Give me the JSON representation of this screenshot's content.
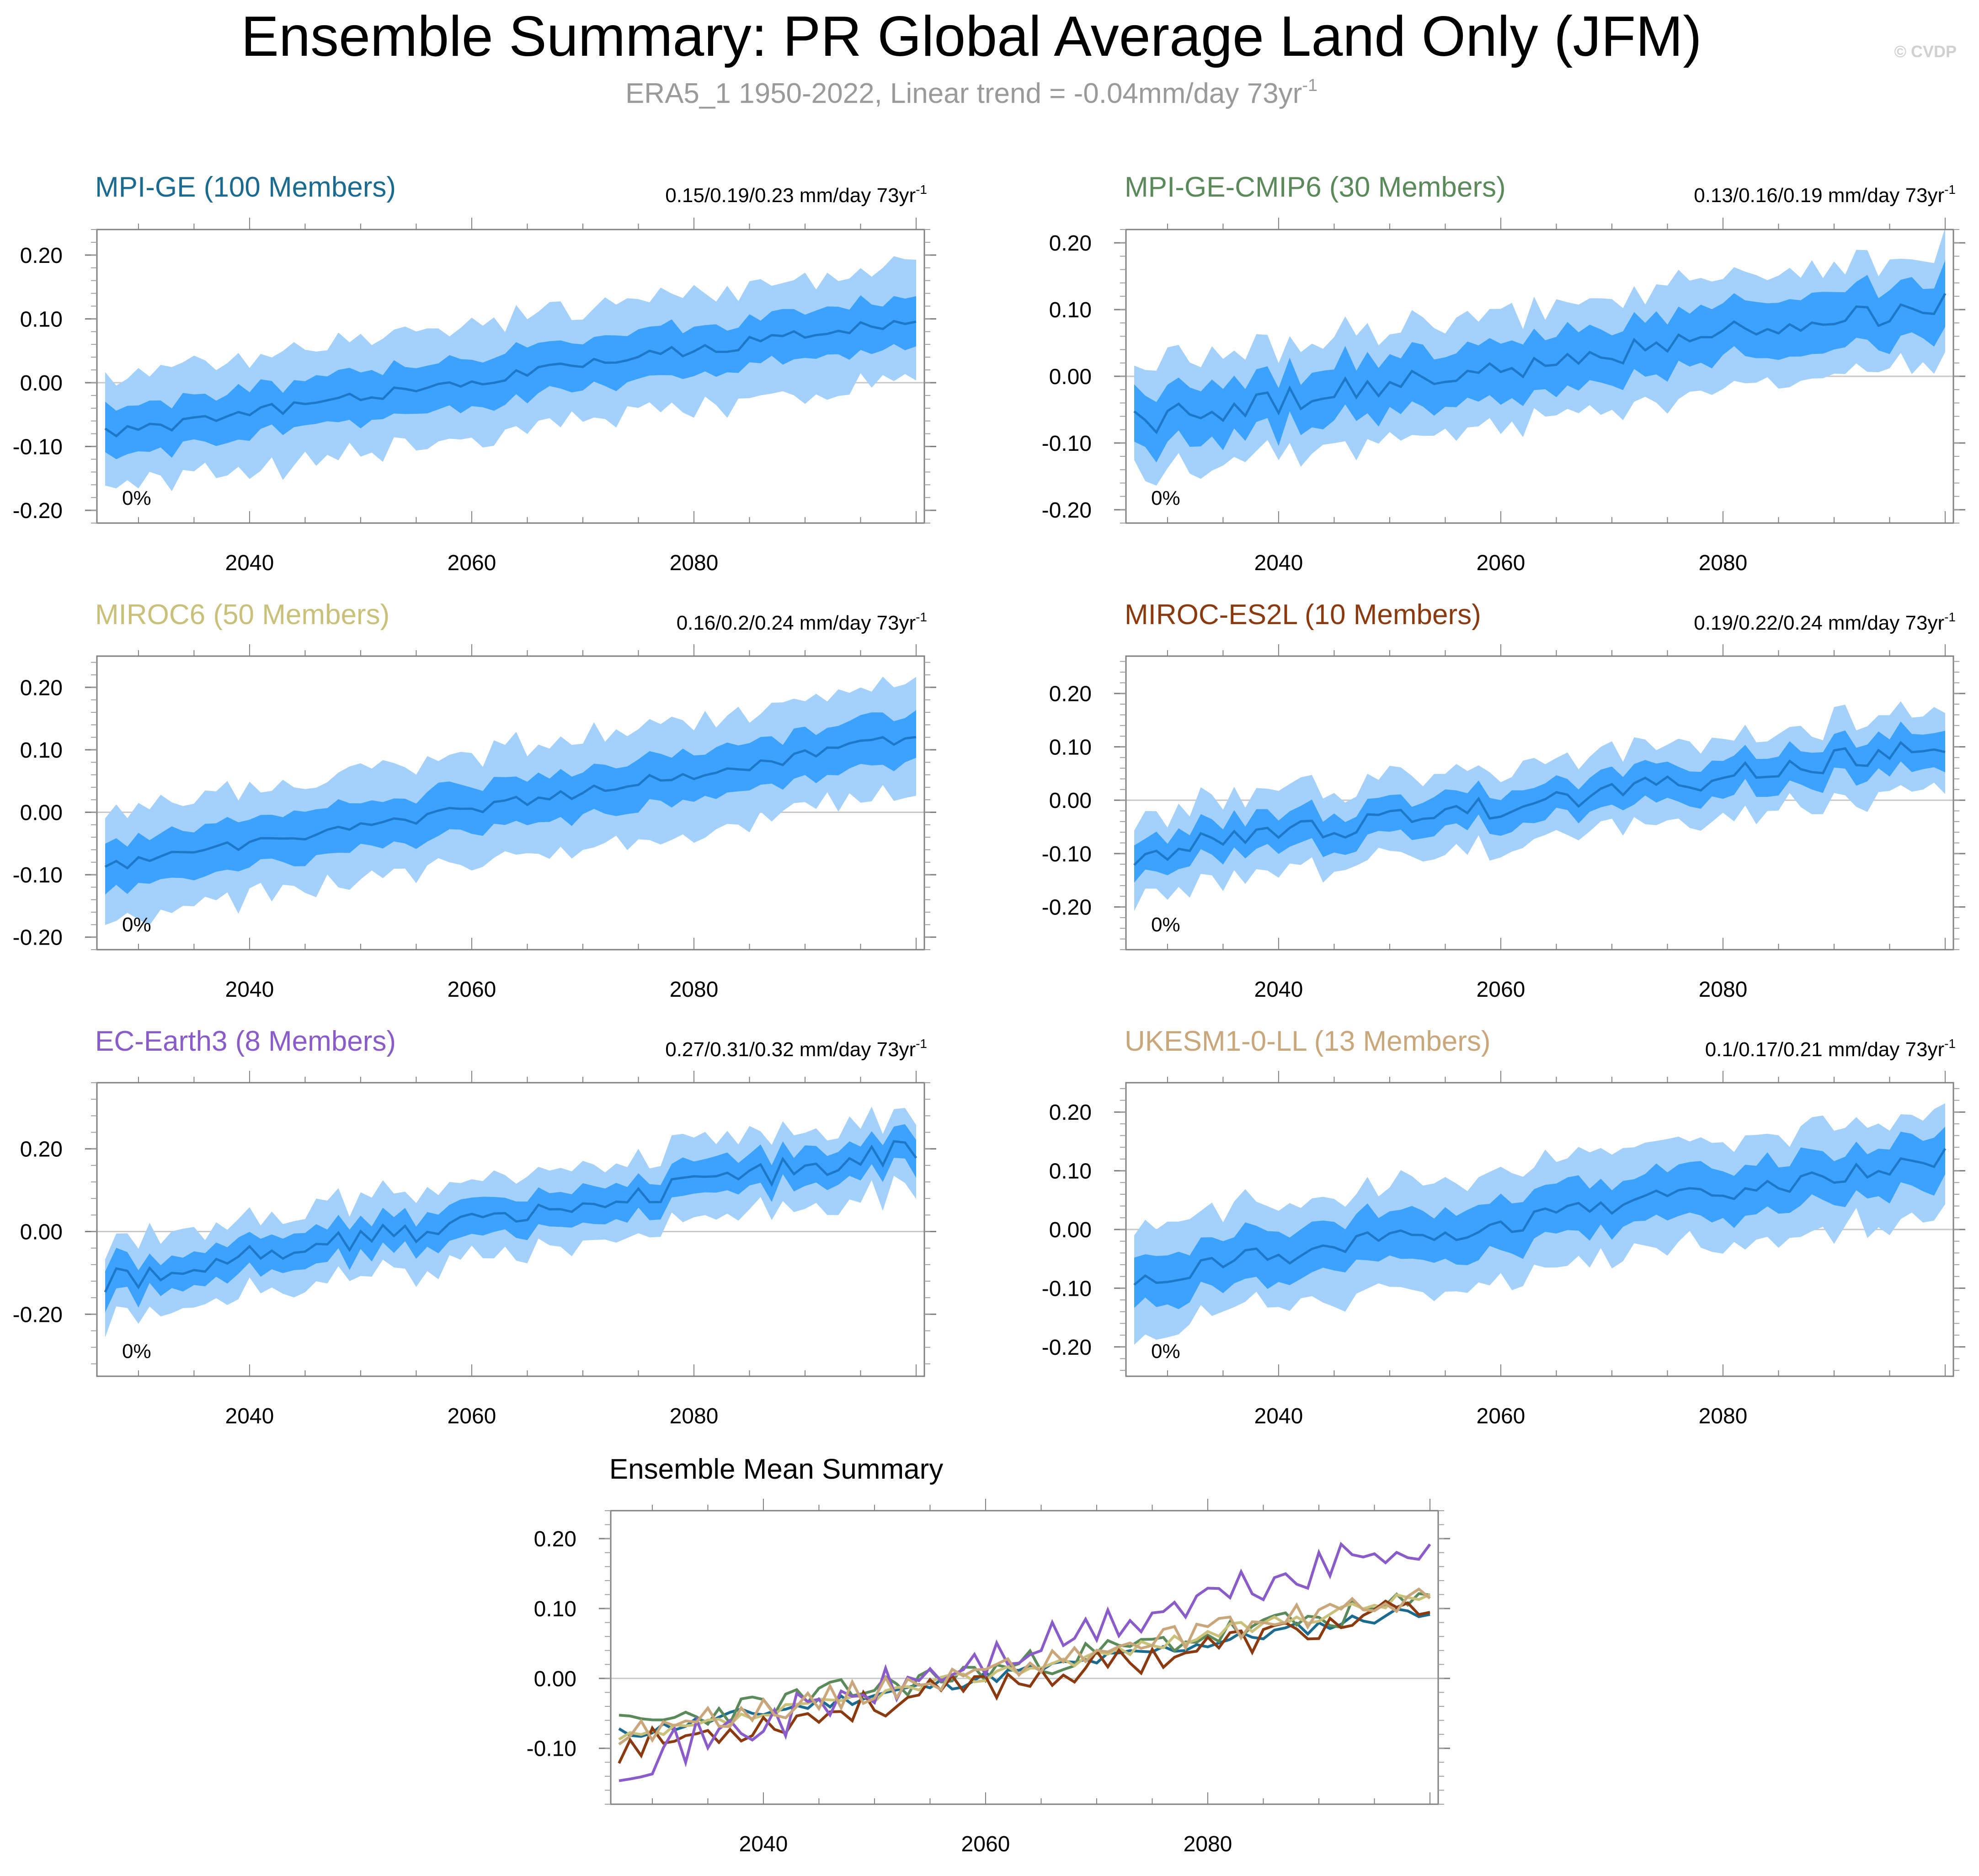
{
  "title": "Ensemble Summary: PR Global Average Land Only (JFM)",
  "subtitle": "ERA5_1 1950-2022, Linear trend = -0.04mm/day 73yr",
  "subtitle_sup": "-1",
  "credit": "© CVDP",
  "colors": {
    "outer_band": "#a3d1fb",
    "inner_band": "#3ba2ff",
    "mean_line": "#1e78c8",
    "zero_line": "#c8c8c8"
  },
  "chart_data": [
    {
      "type": "area",
      "title": "MPI-GE (100 Members)",
      "title_color": "#1a6b8f",
      "trend_text": "0.15/0.19/0.23 mm/day 73yr",
      "trend_sup": "-1",
      "percent_label": "0%",
      "x_range": [
        2027,
        2100
      ],
      "x_ticks": [
        "2040",
        "2060",
        "2080"
      ],
      "x_tick_values": [
        2040,
        2060,
        2080
      ],
      "ylim": [
        -0.22,
        0.24
      ],
      "y_ticks": [
        "0.20",
        "0.10",
        "0.00",
        "-0.10",
        "-0.20"
      ],
      "y_tick_values": [
        0.2,
        0.1,
        0.0,
        -0.1,
        -0.2
      ],
      "series": [
        {
          "name": "ensemble mean",
          "start_mean": -0.08,
          "end_mean": 0.1,
          "noise": 0.01,
          "inner_spread": 0.045,
          "outer_spread": 0.095,
          "seed": 11
        }
      ]
    },
    {
      "type": "area",
      "title": "MPI-GE-CMIP6 (30 Members)",
      "title_color": "#5a8a5a",
      "trend_text": "0.13/0.16/0.19 mm/day 73yr",
      "trend_sup": "-1",
      "percent_label": "0%",
      "x_range": [
        2027,
        2100
      ],
      "x_ticks": [
        "2040",
        "2060",
        "2080"
      ],
      "x_tick_values": [
        2040,
        2060,
        2080
      ],
      "ylim": [
        -0.22,
        0.22
      ],
      "y_ticks": [
        "0.20",
        "0.10",
        "0.00",
        "-0.10",
        "-0.20"
      ],
      "y_tick_values": [
        0.2,
        0.1,
        0.0,
        -0.1,
        -0.2
      ],
      "series": [
        {
          "name": "ensemble mean",
          "start_mean": -0.07,
          "end_mean": 0.11,
          "noise": 0.02,
          "inner_spread": 0.05,
          "outer_spread": 0.09,
          "seed": 23
        }
      ]
    },
    {
      "type": "area",
      "title": "MIROC6 (50 Members)",
      "title_color": "#c9c07a",
      "trend_text": "0.16/0.2/0.24 mm/day 73yr",
      "trend_sup": "-1",
      "percent_label": "0%",
      "x_range": [
        2027,
        2100
      ],
      "x_ticks": [
        "2040",
        "2060",
        "2080"
      ],
      "x_tick_values": [
        2040,
        2060,
        2080
      ],
      "ylim": [
        -0.22,
        0.25
      ],
      "y_ticks": [
        "0.20",
        "0.10",
        "0.00",
        "-0.10",
        "-0.20"
      ],
      "y_tick_values": [
        0.2,
        0.1,
        0.0,
        -0.1,
        -0.2
      ],
      "series": [
        {
          "name": "ensemble mean",
          "start_mean": -0.09,
          "end_mean": 0.12,
          "noise": 0.01,
          "inner_spread": 0.045,
          "outer_spread": 0.095,
          "seed": 37
        }
      ]
    },
    {
      "type": "area",
      "title": "MIROC-ES2L (10 Members)",
      "title_color": "#8b3a10",
      "trend_text": "0.19/0.22/0.24 mm/day 73yr",
      "trend_sup": "-1",
      "percent_label": "0%",
      "x_range": [
        2027,
        2100
      ],
      "x_ticks": [
        "2040",
        "2060",
        "2080"
      ],
      "x_tick_values": [
        2040,
        2060,
        2080
      ],
      "ylim": [
        -0.28,
        0.27
      ],
      "y_ticks": [
        "0.20",
        "0.10",
        "0.00",
        "-0.10",
        "-0.20"
      ],
      "y_tick_values": [
        0.2,
        0.1,
        0.0,
        -0.1,
        -0.2
      ],
      "series": [
        {
          "name": "ensemble mean",
          "start_mean": -0.1,
          "end_mean": 0.1,
          "noise": 0.022,
          "inner_spread": 0.04,
          "outer_spread": 0.08,
          "seed": 53
        }
      ]
    },
    {
      "type": "area",
      "title": "EC-Earth3 (8 Members)",
      "title_color": "#8a5cc9",
      "trend_text": "0.27/0.31/0.32 mm/day 73yr",
      "trend_sup": "-1",
      "percent_label": "0%",
      "x_range": [
        2027,
        2100
      ],
      "x_ticks": [
        "2040",
        "2060",
        "2080"
      ],
      "x_tick_values": [
        2040,
        2060,
        2080
      ],
      "ylim": [
        -0.35,
        0.36
      ],
      "y_ticks": [
        "0.20",
        "0.00",
        "-0.20"
      ],
      "y_tick_values": [
        0.2,
        0.0,
        -0.2
      ],
      "series": [
        {
          "name": "ensemble mean",
          "start_mean": -0.12,
          "end_mean": 0.2,
          "noise": 0.03,
          "inner_spread": 0.05,
          "outer_spread": 0.1,
          "seed": 71
        }
      ]
    },
    {
      "type": "area",
      "title": "UKESM1-0-LL (13 Members)",
      "title_color": "#c9a77a",
      "trend_text": "0.1/0.17/0.21 mm/day 73yr",
      "trend_sup": "-1",
      "percent_label": "0%",
      "x_range": [
        2027,
        2100
      ],
      "x_ticks": [
        "2040",
        "2060",
        "2080"
      ],
      "x_tick_values": [
        2040,
        2060,
        2080
      ],
      "ylim": [
        -0.25,
        0.25
      ],
      "y_ticks": [
        "0.20",
        "0.10",
        "0.00",
        "-0.10",
        "-0.20"
      ],
      "y_tick_values": [
        0.2,
        0.1,
        0.0,
        -0.1,
        -0.2
      ],
      "series": [
        {
          "name": "ensemble mean",
          "start_mean": -0.08,
          "end_mean": 0.12,
          "noise": 0.018,
          "inner_spread": 0.05,
          "outer_spread": 0.095,
          "seed": 89
        }
      ]
    },
    {
      "type": "line",
      "title": "Ensemble Mean Summary",
      "x_range": [
        2027,
        2100
      ],
      "x_ticks": [
        "2040",
        "2060",
        "2080"
      ],
      "x_tick_values": [
        2040,
        2060,
        2080
      ],
      "ylim": [
        -0.18,
        0.24
      ],
      "y_ticks": [
        "0.20",
        "0.10",
        "0.00",
        "-0.10"
      ],
      "y_tick_values": [
        0.2,
        0.1,
        0.0,
        -0.1
      ],
      "series": [
        {
          "name": "MPI-GE",
          "color": "#1a6b8f",
          "start_mean": -0.08,
          "end_mean": 0.1,
          "noise": 0.01,
          "seed": 11
        },
        {
          "name": "MPI-GE-CMIP6",
          "color": "#5a8a5a",
          "start_mean": -0.07,
          "end_mean": 0.11,
          "noise": 0.02,
          "seed": 23
        },
        {
          "name": "MIROC6",
          "color": "#c9c07a",
          "start_mean": -0.09,
          "end_mean": 0.12,
          "noise": 0.01,
          "seed": 37
        },
        {
          "name": "MIROC-ES2L",
          "color": "#8b3a10",
          "start_mean": -0.1,
          "end_mean": 0.1,
          "noise": 0.022,
          "seed": 53
        },
        {
          "name": "EC-Earth3",
          "color": "#8a5cc9",
          "start_mean": -0.12,
          "end_mean": 0.2,
          "noise": 0.03,
          "seed": 71
        },
        {
          "name": "UKESM1-0-LL",
          "color": "#c9a77a",
          "start_mean": -0.08,
          "end_mean": 0.12,
          "noise": 0.018,
          "seed": 89
        }
      ]
    }
  ]
}
